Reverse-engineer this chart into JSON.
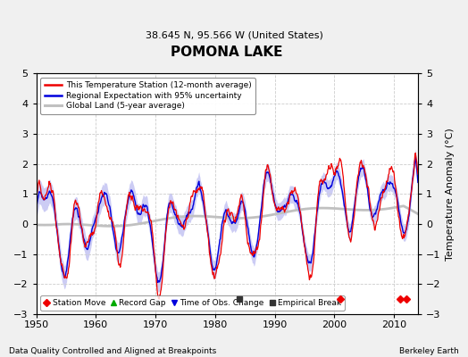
{
  "title": "POMONA LAKE",
  "subtitle": "38.645 N, 95.566 W (United States)",
  "xlabel_note": "Data Quality Controlled and Aligned at Breakpoints",
  "xlabel_credit": "Berkeley Earth",
  "ylabel": "Temperature Anomaly (°C)",
  "xlim": [
    1950,
    2014
  ],
  "ylim": [
    -3,
    5
  ],
  "yticks": [
    -3,
    -2,
    -1,
    0,
    1,
    2,
    3,
    4,
    5
  ],
  "xticks": [
    1950,
    1960,
    1970,
    1980,
    1990,
    2000,
    2010
  ],
  "bg_color": "#f0f0f0",
  "plot_bg_color": "#ffffff",
  "station_line_color": "#ee0000",
  "regional_line_color": "#0000dd",
  "regional_fill_color": "#aaaaee",
  "global_line_color": "#c0c0c0",
  "station_move_color": "#ee0000",
  "record_gap_color": "#00aa00",
  "time_obs_color": "#0000dd",
  "empirical_break_color": "#333333",
  "station_move_years": [
    2001,
    2011,
    2012
  ],
  "empirical_break_years": [
    1984
  ],
  "time_obs_years": [],
  "record_gap_years": []
}
